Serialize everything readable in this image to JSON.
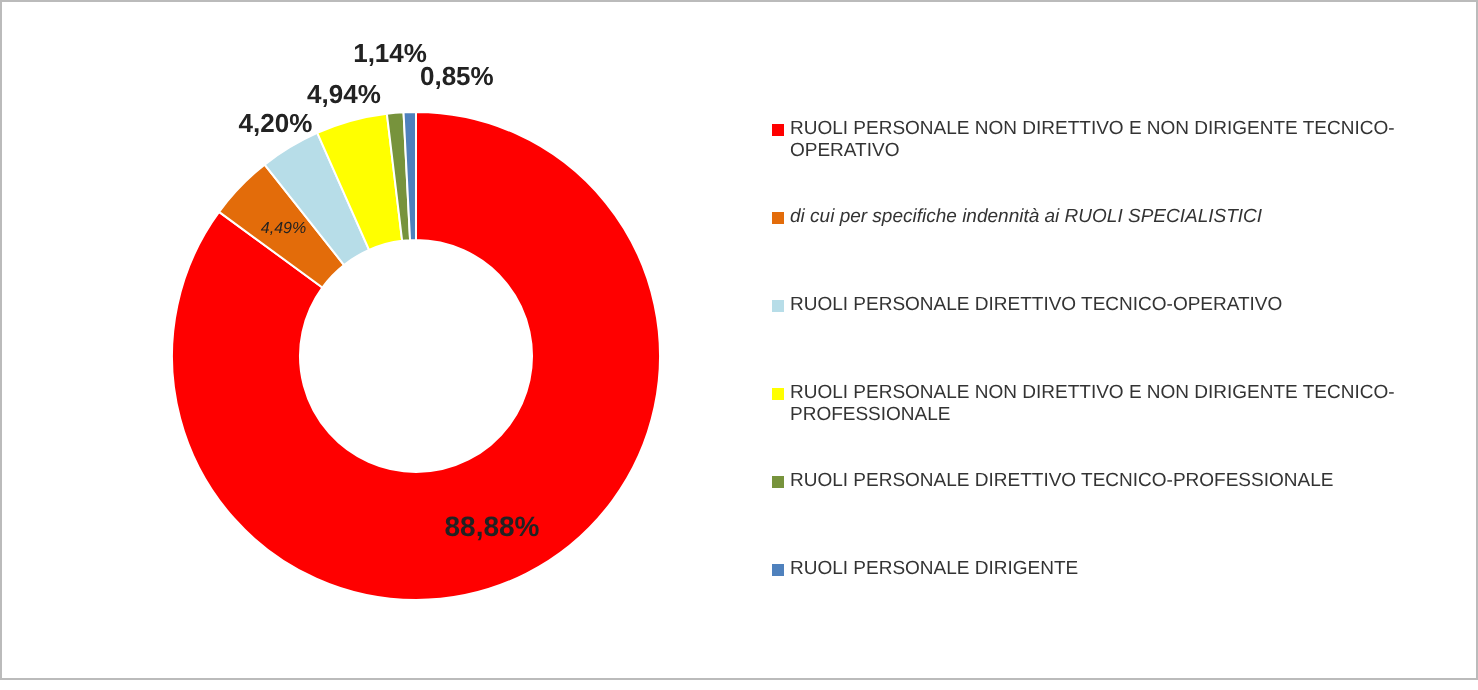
{
  "chart_data": {
    "type": "donut",
    "categories": [
      "RUOLI PERSONALE NON DIRETTIVO E NON DIRIGENTE TECNICO-OPERATIVO",
      "di cui per specifiche indennità ai RUOLI SPECIALISTICI",
      "RUOLI PERSONALE DIRETTIVO TECNICO-OPERATIVO",
      "RUOLI PERSONALE NON DIRETTIVO E NON DIRIGENTE TECNICO-PROFESSIONALE",
      "RUOLI PERSONALE DIRETTIVO TECNICO-PROFESSIONALE",
      "RUOLI PERSONALE DIRIGENTE"
    ],
    "values": [
      88.88,
      4.49,
      4.2,
      4.94,
      1.14,
      0.85
    ],
    "value_labels": [
      "88,88%",
      "4,49%",
      "4,20%",
      "4,94%",
      "1,14%",
      "0,85%"
    ],
    "colors": [
      "#ff0000",
      "#e36c0a",
      "#b7dde8",
      "#ffff00",
      "#77933c",
      "#4f81bd"
    ],
    "legend": "right"
  }
}
